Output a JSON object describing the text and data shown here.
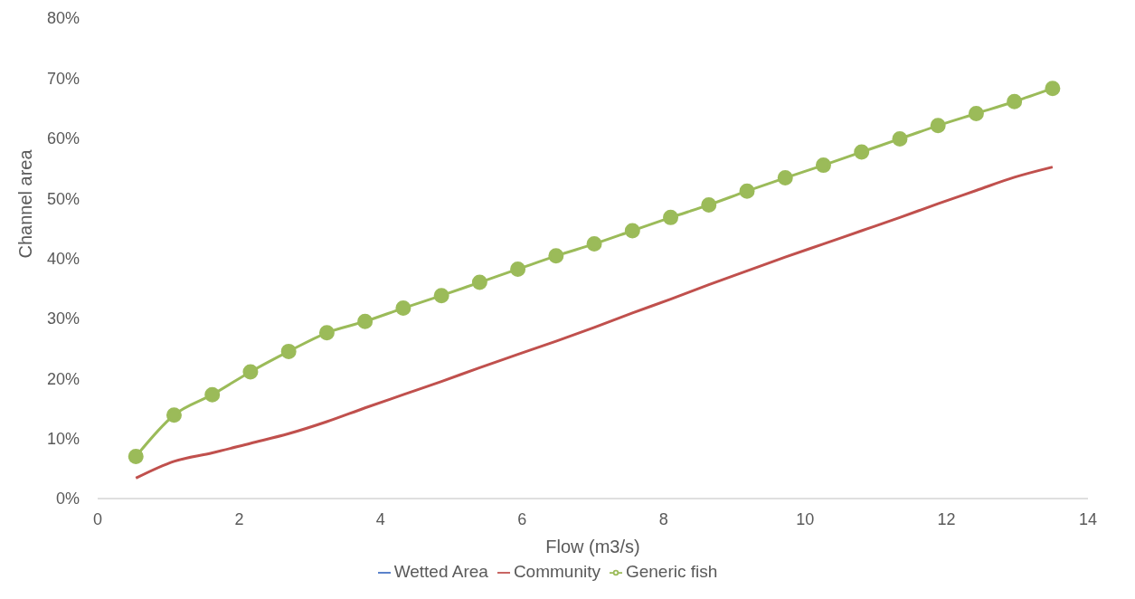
{
  "chart_data": {
    "type": "line",
    "xlabel": "Flow (m3/s)",
    "ylabel": "Channel area",
    "x": [
      0.54,
      1.08,
      1.62,
      2.16,
      2.7,
      3.24,
      3.78,
      4.32,
      4.86,
      5.4,
      5.94,
      6.48,
      7.02,
      7.56,
      8.1,
      8.64,
      9.18,
      9.72,
      10.26,
      10.8,
      11.34,
      11.88,
      12.42,
      12.96,
      13.5
    ],
    "series": [
      {
        "name": "Wetted Area",
        "color": "#4472c4",
        "marker": "none",
        "values": [
          null,
          null,
          null,
          null,
          null,
          null,
          null,
          null,
          null,
          null,
          null,
          null,
          null,
          null,
          null,
          null,
          null,
          null,
          null,
          null,
          null,
          null,
          null,
          null,
          null
        ]
      },
      {
        "name": "Community",
        "color": "#c0504d",
        "marker": "none",
        "values": [
          3.4,
          6.2,
          7.6,
          9.2,
          10.8,
          12.8,
          15.1,
          17.3,
          19.5,
          21.8,
          24.0,
          26.2,
          28.5,
          30.9,
          33.2,
          35.6,
          37.9,
          40.2,
          42.4,
          44.6,
          46.8,
          49.1,
          51.3,
          53.5,
          55.2
        ]
      },
      {
        "name": "Generic fish",
        "color": "#9bbb59",
        "marker": "circle",
        "values": [
          7.0,
          13.9,
          17.3,
          21.1,
          24.5,
          27.6,
          29.5,
          31.7,
          33.8,
          36.0,
          38.2,
          40.4,
          42.4,
          44.6,
          46.8,
          48.9,
          51.2,
          53.4,
          55.5,
          57.7,
          59.9,
          62.1,
          64.1,
          66.1,
          68.3
        ]
      }
    ],
    "xlim": [
      0,
      14
    ],
    "xticks": [
      0,
      2,
      4,
      6,
      8,
      10,
      12,
      14
    ],
    "ylim": [
      0,
      80
    ],
    "yticks": [
      {
        "value": 0,
        "label": "0%"
      },
      {
        "value": 10,
        "label": "10%"
      },
      {
        "value": 20,
        "label": "20%"
      },
      {
        "value": 30,
        "label": "30%"
      },
      {
        "value": 40,
        "label": "40%"
      },
      {
        "value": 50,
        "label": "50%"
      },
      {
        "value": 60,
        "label": "60%"
      },
      {
        "value": 70,
        "label": "70%"
      },
      {
        "value": 80,
        "label": "80%"
      }
    ],
    "grid": false,
    "legend": "bottom"
  }
}
